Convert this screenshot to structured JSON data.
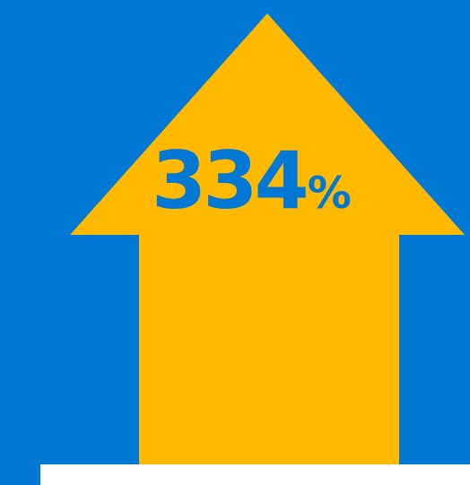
{
  "stat": {
    "value": "334",
    "unit": "%"
  },
  "colors": {
    "background": "#0078D4",
    "arrow": "#FFB900",
    "text": "#0078D4",
    "panel": "#FFFFFF"
  },
  "icon": "up-arrow-icon"
}
